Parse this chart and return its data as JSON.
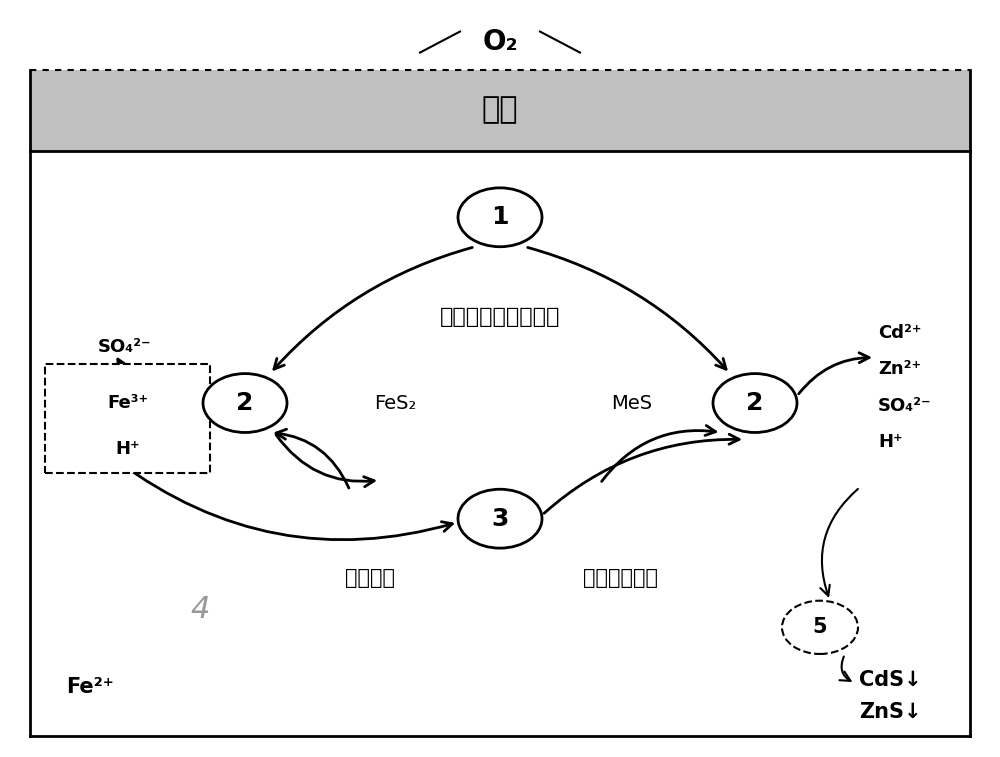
{
  "bg_color": "#ffffff",
  "border_color": "#000000",
  "cover_soil_label": "覆土",
  "o2_label": "O₂",
  "circle1_label": "1",
  "circle2_left_label": "2",
  "circle2_right_label": "2",
  "circle3_label": "3",
  "circle5_label": "5",
  "num4_label": "4",
  "bacteria_label": "自养铁、硫氧化细菌",
  "fes2_label": "FeS₂",
  "mes_label": "MeS",
  "iron_bacteria_label": "铁还原菌",
  "sulfate_bacteria_label": "硫酸盐还原菌",
  "fe2_label": "Fe²⁺",
  "cds_label": "CdS↓",
  "zns_label": "ZnS↓",
  "fig_width": 10.0,
  "fig_height": 7.57,
  "dpi": 100
}
